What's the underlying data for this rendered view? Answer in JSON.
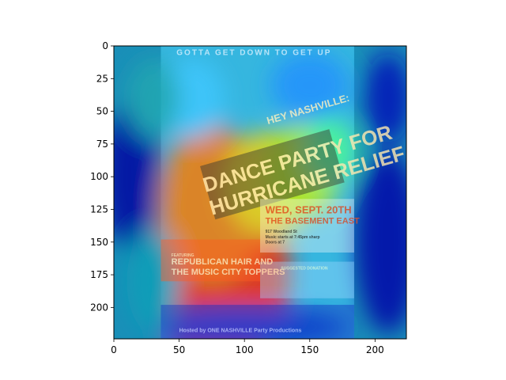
{
  "chart_data": {
    "type": "heatmap",
    "title": "",
    "xlabel": "",
    "ylabel": "",
    "xlim": [
      0,
      224
    ],
    "ylim": [
      224,
      0
    ],
    "x_ticks": [
      0,
      50,
      100,
      150,
      200
    ],
    "y_ticks": [
      0,
      25,
      50,
      75,
      100,
      125,
      150,
      175,
      200
    ],
    "x_tick_labels": [
      "0",
      "50",
      "100",
      "150",
      "200"
    ],
    "y_tick_labels": [
      "0",
      "25",
      "50",
      "75",
      "100",
      "125",
      "150",
      "175",
      "200"
    ],
    "colormap": "jet",
    "grid": false,
    "image_extent": {
      "x": [
        0,
        224
      ],
      "y": [
        0,
        224
      ]
    },
    "poster_extent": {
      "x": [
        36,
        184
      ],
      "y": [
        0,
        224
      ]
    },
    "poster_text": {
      "top": "GOTTA GET DOWN TO GET UP",
      "hey": "HEY NASHVILLE:",
      "headline_1": "DANCE PARTY FOR",
      "headline_2": "HURRICANE RELIEF",
      "date": "WED, SEPT. 20TH",
      "venue": "THE BASEMENT EAST",
      "details_1": "917 Woodland St",
      "details_2": "Music starts at 7:45pm sharp",
      "details_3": "Doors at 7",
      "featuring": "FEATURING",
      "band_1": "REPUBLICAN HAIR AND",
      "band_2": "THE MUSIC CITY TOPPERS",
      "suggested": "SUGGESTED DONATION",
      "hosted": "Hosted by ONE NASHVILLE Party Productions"
    },
    "heat_regions": [
      {
        "x": 80,
        "y": 175,
        "rx": 55,
        "ry": 70,
        "color": "#ff2000"
      },
      {
        "x": 75,
        "y": 120,
        "rx": 40,
        "ry": 60,
        "color": "#ff7a00"
      },
      {
        "x": 120,
        "y": 105,
        "rx": 35,
        "ry": 40,
        "color": "#ffd000"
      },
      {
        "x": 145,
        "y": 95,
        "rx": 30,
        "ry": 35,
        "color": "#c8f000"
      },
      {
        "x": 165,
        "y": 80,
        "rx": 20,
        "ry": 25,
        "color": "#50ff90"
      },
      {
        "x": 60,
        "y": 40,
        "rx": 25,
        "ry": 30,
        "color": "#40c8ff"
      },
      {
        "x": 150,
        "y": 30,
        "rx": 30,
        "ry": 25,
        "color": "#2090ff"
      },
      {
        "x": 12,
        "y": 100,
        "rx": 22,
        "ry": 55,
        "color": "#0000a0"
      },
      {
        "x": 210,
        "y": 150,
        "rx": 25,
        "ry": 70,
        "color": "#0000a8"
      },
      {
        "x": 210,
        "y": 40,
        "rx": 18,
        "ry": 35,
        "color": "#0010b8"
      },
      {
        "x": 100,
        "y": 215,
        "rx": 80,
        "ry": 12,
        "color": "#0030d0"
      },
      {
        "x": 30,
        "y": 40,
        "rx": 20,
        "ry": 30,
        "color": "#20a8b0"
      },
      {
        "x": 30,
        "y": 180,
        "rx": 20,
        "ry": 40,
        "color": "#10a0b8"
      }
    ]
  }
}
